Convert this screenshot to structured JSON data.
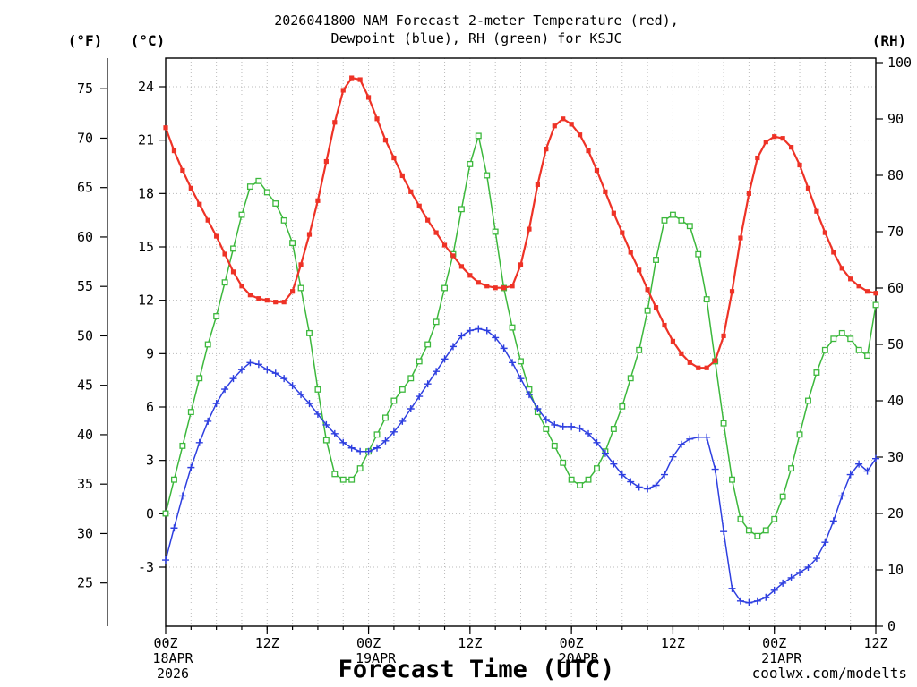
{
  "title": {
    "line1": "2026041800 NAM Forecast 2-meter Temperature (red),",
    "line2": "Dewpoint (blue), RH (green) for KSJC"
  },
  "axis_units": {
    "fahrenheit": "(°F)",
    "celsius": "(°C)",
    "rh": "(RH)"
  },
  "watermark": {
    "text": "coolwx.com/modelts",
    "color": "#f08878"
  },
  "chart_data": {
    "type": "line",
    "title": "2026041800 NAM Forecast 2-meter Temperature (red), Dewpoint (blue), RH (green) for KSJC",
    "station": "KSJC",
    "model_run": "2026041800 NAM",
    "xlabel": "Forecast Time (UTC)",
    "x": {
      "start_label": "00Z 18APR 2026",
      "end_label": "12Z 21APR 2026",
      "step_hours": 1,
      "total_hours": 84
    },
    "x_ticks": [
      {
        "hour": 0,
        "label": "00Z"
      },
      {
        "hour": 12,
        "label": "12Z"
      },
      {
        "hour": 24,
        "label": "00Z"
      },
      {
        "hour": 36,
        "label": "12Z"
      },
      {
        "hour": 48,
        "label": "00Z"
      },
      {
        "hour": 60,
        "label": "12Z"
      },
      {
        "hour": 72,
        "label": "00Z"
      },
      {
        "hour": 84,
        "label": "12Z"
      }
    ],
    "x_date_labels": [
      {
        "hour": 0,
        "lines": [
          "18APR",
          "2026"
        ]
      },
      {
        "hour": 24,
        "lines": [
          "19APR"
        ]
      },
      {
        "hour": 48,
        "lines": [
          "20APR"
        ]
      },
      {
        "hour": 72,
        "lines": [
          "21APR"
        ]
      }
    ],
    "grid": {
      "show": true,
      "x_interval_hours": 3,
      "celsius_interval": 3
    },
    "axes": {
      "celsius": {
        "unit": "(°C)",
        "ticks": [
          24,
          21,
          18,
          15,
          12,
          9,
          6,
          3,
          0,
          -3
        ]
      },
      "fahrenheit": {
        "unit": "(°F)",
        "ticks": [
          75,
          70,
          65,
          60,
          55,
          50,
          45,
          40,
          35,
          30,
          25
        ]
      },
      "rh": {
        "unit": "(RH)",
        "ticks": [
          100,
          90,
          80,
          70,
          60,
          50,
          40,
          30,
          20,
          10,
          0
        ],
        "min": 0,
        "max": 100
      }
    },
    "series": [
      {
        "id": "rh",
        "name": "RH (green)",
        "axis": "rh",
        "unit": "%",
        "color": "#3cb83c",
        "marker": "open-square",
        "values": [
          20,
          26,
          32,
          38,
          44,
          50,
          55,
          61,
          67,
          73,
          78,
          79,
          77,
          75,
          72,
          68,
          60,
          52,
          42,
          33,
          27,
          26,
          26,
          28,
          31,
          34,
          37,
          40,
          42,
          44,
          47,
          50,
          54,
          60,
          66,
          74,
          82,
          87,
          80,
          70,
          60,
          53,
          47,
          42,
          38,
          35,
          32,
          29,
          26,
          25,
          26,
          28,
          31,
          35,
          39,
          44,
          49,
          56,
          65,
          72,
          73,
          72,
          71,
          66,
          58,
          47,
          36,
          26,
          19,
          17,
          16,
          17,
          19,
          23,
          28,
          34,
          40,
          45,
          49,
          51,
          52,
          51,
          49,
          48,
          57
        ]
      },
      {
        "id": "dewpoint",
        "name": "Dewpoint (blue)",
        "axis": "celsius",
        "unit": "°C",
        "color": "#2e3fe0",
        "marker": "plus",
        "values": [
          -2.6,
          -0.8,
          1.0,
          2.6,
          4.0,
          5.2,
          6.2,
          7.0,
          7.6,
          8.1,
          8.5,
          8.4,
          8.1,
          7.9,
          7.6,
          7.2,
          6.7,
          6.2,
          5.6,
          5.0,
          4.5,
          4.0,
          3.7,
          3.5,
          3.5,
          3.7,
          4.1,
          4.6,
          5.2,
          5.9,
          6.6,
          7.3,
          8.0,
          8.7,
          9.4,
          10.0,
          10.3,
          10.4,
          10.3,
          9.9,
          9.3,
          8.5,
          7.6,
          6.7,
          5.9,
          5.3,
          5.0,
          4.9,
          4.9,
          4.8,
          4.5,
          4.0,
          3.4,
          2.8,
          2.2,
          1.8,
          1.5,
          1.4,
          1.6,
          2.2,
          3.2,
          3.9,
          4.2,
          4.3,
          4.3,
          2.5,
          -1.0,
          -4.2,
          -4.9,
          -5.0,
          -4.9,
          -4.7,
          -4.3,
          -3.9,
          -3.6,
          -3.3,
          -3.0,
          -2.5,
          -1.6,
          -0.4,
          1.0,
          2.2,
          2.8,
          2.4,
          3.1
        ]
      },
      {
        "id": "temperature",
        "name": "2-meter Temperature (red)",
        "axis": "celsius",
        "unit": "°C",
        "color": "#ee3226",
        "marker": "filled-square",
        "values": [
          21.7,
          20.4,
          19.3,
          18.3,
          17.4,
          16.5,
          15.6,
          14.6,
          13.6,
          12.8,
          12.3,
          12.1,
          12.0,
          11.9,
          11.9,
          12.5,
          14.0,
          15.7,
          17.6,
          19.8,
          22.0,
          23.8,
          24.5,
          24.4,
          23.4,
          22.2,
          21.0,
          20.0,
          19.0,
          18.1,
          17.3,
          16.5,
          15.8,
          15.1,
          14.5,
          13.9,
          13.4,
          13.0,
          12.8,
          12.7,
          12.7,
          12.8,
          14.0,
          16.0,
          18.5,
          20.5,
          21.8,
          22.2,
          21.9,
          21.3,
          20.4,
          19.3,
          18.1,
          16.9,
          15.8,
          14.7,
          13.7,
          12.6,
          11.6,
          10.6,
          9.7,
          9.0,
          8.5,
          8.2,
          8.2,
          8.6,
          10.0,
          12.5,
          15.5,
          18.0,
          20.0,
          20.9,
          21.2,
          21.1,
          20.6,
          19.6,
          18.3,
          17.0,
          15.8,
          14.7,
          13.8,
          13.2,
          12.8,
          12.5,
          12.4
        ]
      }
    ]
  }
}
